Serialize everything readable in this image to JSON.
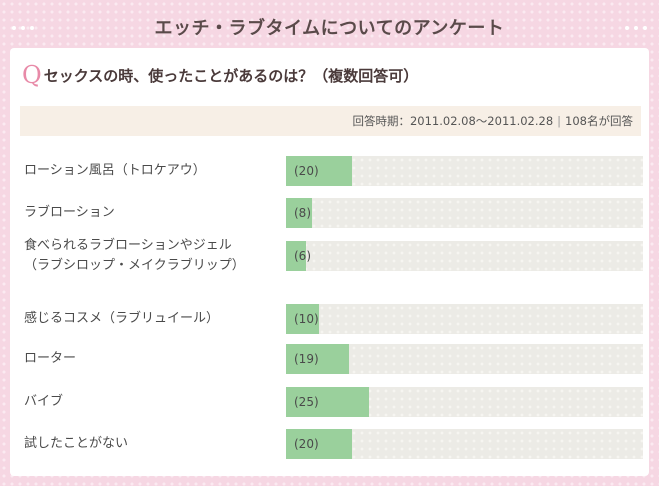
{
  "header": {
    "title": "エッチ・ラブタイムについてのアンケート"
  },
  "question": {
    "mark": "Q",
    "text": "セックスの時、使ったことがあるのは？（複数回答可）"
  },
  "period": {
    "text": "回答時期：2011.02.08〜2011.02.28",
    "separator": "|",
    "respondents": "108名が回答"
  },
  "chart_data": {
    "type": "bar",
    "orientation": "horizontal",
    "categories": [
      "ローション風呂（トロケアウ）",
      "ラブローション",
      "食べられるラブローションやジェル（ラブシロップ・メイクラブリップ）",
      "感じるコスメ（ラブリュイール）",
      "ローター",
      "バイブ",
      "試したことがない"
    ],
    "category_lines": [
      [
        "ローション風呂（トロケアウ）"
      ],
      [
        "ラブローション"
      ],
      [
        "食べられるラブローションやジェル",
        "（ラブシロップ・メイクラブリップ）"
      ],
      [
        "感じるコスメ（ラブリュイール）"
      ],
      [
        "ローター"
      ],
      [
        "バイブ"
      ],
      [
        "試したことがない"
      ]
    ],
    "values": [
      20,
      8,
      6,
      10,
      19,
      25,
      20
    ],
    "value_labels": [
      "(20)",
      "(8)",
      "(6)",
      "(10)",
      "(19)",
      "(25)",
      "(20)"
    ],
    "xlim": [
      0,
      108
    ],
    "colors": {
      "fill": "#9ad09c",
      "track": "#ecebe6"
    }
  }
}
